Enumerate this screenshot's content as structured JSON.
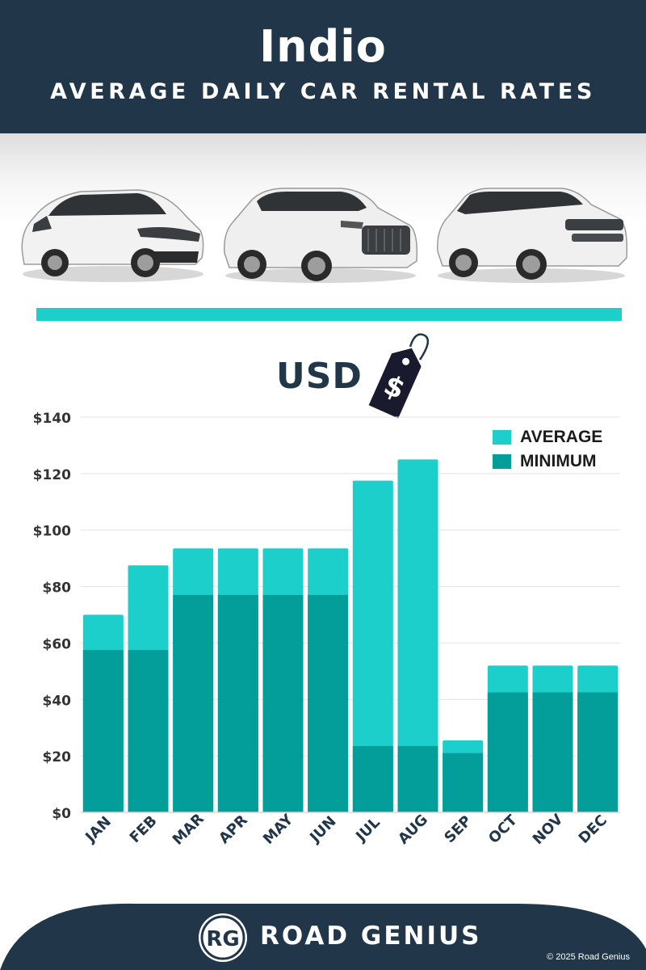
{
  "header": {
    "city": "Indio",
    "subtitle": "AVERAGE DAILY CAR RENTAL RATES"
  },
  "currency_label": "USD",
  "price_tag_symbol": "$",
  "colors": {
    "header_bg": "#22364a",
    "average": "#1dcfca",
    "minimum": "#039e99",
    "axis_text": "#333333",
    "month_text": "#22364a"
  },
  "chart_data": {
    "type": "bar",
    "stacked": "overlay",
    "categories": [
      "JAN",
      "FEB",
      "MAR",
      "APR",
      "MAY",
      "JUN",
      "JUL",
      "AUG",
      "SEP",
      "OCT",
      "NOV",
      "DEC"
    ],
    "series": [
      {
        "name": "AVERAGE",
        "color": "#1dcfca",
        "values": [
          70,
          87.5,
          93.5,
          93.5,
          93.5,
          93.5,
          117.5,
          125,
          25.5,
          52,
          52,
          52
        ]
      },
      {
        "name": "MINIMUM",
        "color": "#039e99",
        "values": [
          57.5,
          57.5,
          77,
          77,
          77,
          77,
          23.5,
          23.5,
          21,
          42.5,
          42.5,
          42.5
        ]
      }
    ],
    "ylim": [
      0,
      140
    ],
    "yticks": [
      0,
      20,
      40,
      60,
      80,
      100,
      120,
      140
    ],
    "ytick_labels": [
      "$0",
      "$20",
      "$40",
      "$60",
      "$80",
      "$100",
      "$120",
      "$140"
    ],
    "grid": true,
    "legend_position": "top-right",
    "xlabel": "",
    "ylabel": ""
  },
  "footer": {
    "logo_text": "RG",
    "brand": "ROAD GENIUS",
    "copyright": "© 2025 Road Genius"
  }
}
